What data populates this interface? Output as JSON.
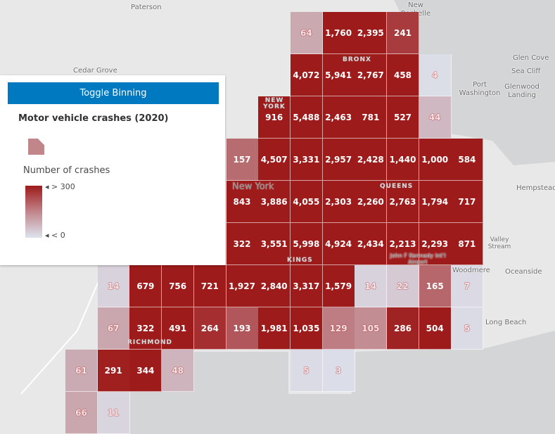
{
  "panel": {
    "toggle_label": "Toggle Binning",
    "layer_title": "Motor vehicle crashes (2020)",
    "ramp_title": "Number of crashes",
    "ramp_high": "> 300",
    "ramp_low": "< 0"
  },
  "colors": {
    "high": "#9e1b1b",
    "low": "#dde3ee",
    "button": "#0079c1"
  },
  "places": [
    "Paterson",
    "Cedar Grove",
    "New Rochelle",
    "Glen Cove",
    "Sea Cliff",
    "Port Washington",
    "Glenwood Landing",
    "Hempstead",
    "Oceanside",
    "Long Beach",
    "Woodmere",
    "Valley Stream",
    "John F Kennedy Int'l Airport",
    "New York"
  ],
  "boroughs": [
    "BRONX",
    "NEW YORK",
    "QUEENS",
    "KINGS",
    "RICHMOND"
  ],
  "bins": [
    {
      "row": 0,
      "cells": [
        [
          7,
          64
        ],
        [
          8,
          1760
        ],
        [
          9,
          2395
        ],
        [
          10,
          241
        ]
      ]
    },
    {
      "row": 1,
      "cells": [
        [
          7,
          4072
        ],
        [
          8,
          5941
        ],
        [
          9,
          2767
        ],
        [
          10,
          458
        ],
        [
          11,
          4
        ]
      ]
    },
    {
      "row": 2,
      "cells": [
        [
          6,
          916
        ],
        [
          7,
          5488
        ],
        [
          8,
          2463
        ],
        [
          9,
          781
        ],
        [
          10,
          527
        ],
        [
          11,
          44
        ]
      ]
    },
    {
      "row": 3,
      "cells": [
        [
          5,
          157
        ],
        [
          6,
          4507
        ],
        [
          7,
          3331
        ],
        [
          8,
          2957
        ],
        [
          9,
          2428
        ],
        [
          10,
          1440
        ],
        [
          11,
          1000
        ],
        [
          12,
          584
        ]
      ]
    },
    {
      "row": 4,
      "cells": [
        [
          5,
          843
        ],
        [
          6,
          3886
        ],
        [
          7,
          4055
        ],
        [
          8,
          2303
        ],
        [
          9,
          2260
        ],
        [
          10,
          2763
        ],
        [
          11,
          1794
        ],
        [
          12,
          717
        ]
      ]
    },
    {
      "row": 5,
      "cells": [
        [
          5,
          322
        ],
        [
          6,
          3551
        ],
        [
          7,
          5998
        ],
        [
          8,
          4924
        ],
        [
          9,
          2434
        ],
        [
          10,
          2213
        ],
        [
          11,
          2293
        ],
        [
          12,
          871
        ]
      ]
    },
    {
      "row": 6,
      "cells": [
        [
          1,
          14
        ],
        [
          2,
          679
        ],
        [
          3,
          756
        ],
        [
          4,
          721
        ],
        [
          5,
          1927
        ],
        [
          6,
          2840
        ],
        [
          7,
          3317
        ],
        [
          8,
          1579
        ],
        [
          9,
          14
        ],
        [
          10,
          22
        ],
        [
          11,
          165
        ],
        [
          12,
          7
        ]
      ]
    },
    {
      "row": 7,
      "cells": [
        [
          1,
          67
        ],
        [
          2,
          322
        ],
        [
          3,
          491
        ],
        [
          4,
          264
        ],
        [
          5,
          193
        ],
        [
          6,
          1981
        ],
        [
          7,
          1035
        ],
        [
          8,
          129
        ],
        [
          9,
          105
        ],
        [
          10,
          286
        ],
        [
          11,
          504
        ],
        [
          12,
          5
        ]
      ]
    },
    {
      "row": 8,
      "cells": [
        [
          0,
          61
        ],
        [
          1,
          291
        ],
        [
          2,
          344
        ],
        [
          3,
          48
        ],
        [
          7,
          5
        ],
        [
          8,
          3
        ]
      ]
    },
    {
      "row": 9,
      "cells": [
        [
          0,
          66
        ],
        [
          1,
          11
        ]
      ]
    }
  ]
}
